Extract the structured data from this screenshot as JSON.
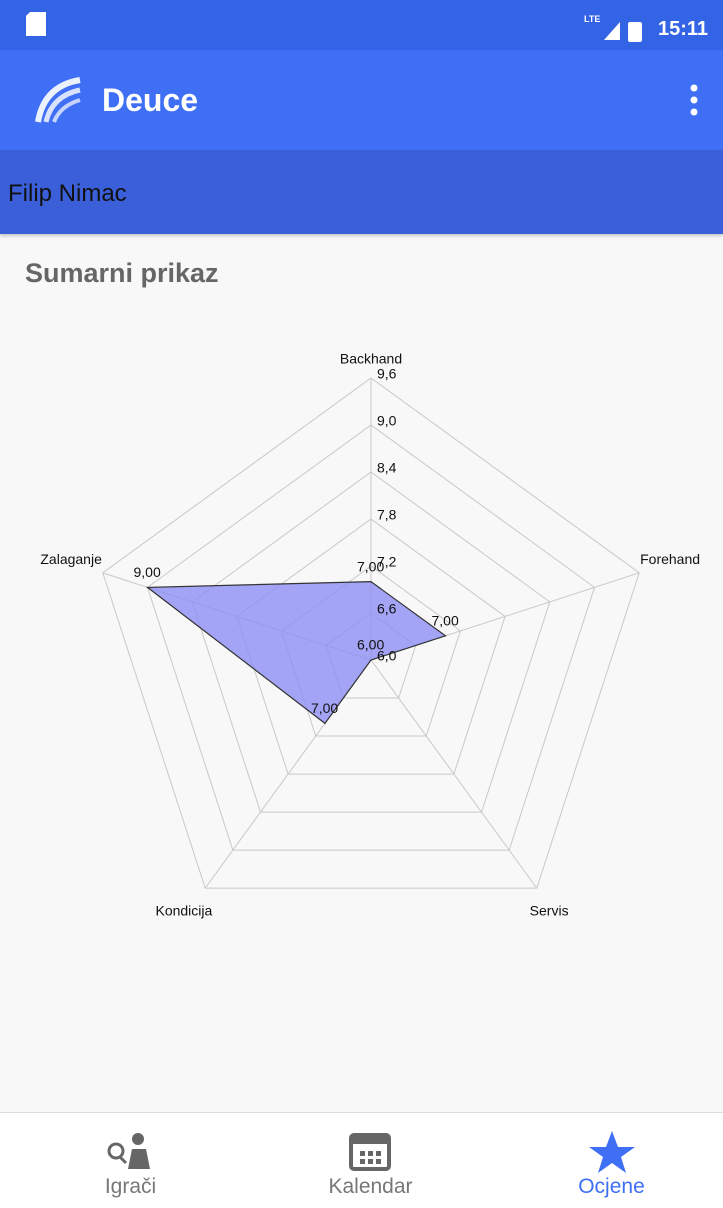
{
  "status": {
    "network": "LTE",
    "time": "15:11"
  },
  "app_bar": {
    "title": "Deuce"
  },
  "player": {
    "name": "Filip Nimac"
  },
  "section": {
    "title": "Sumarni prikaz"
  },
  "chart_data": {
    "type": "radar",
    "categories": [
      "Backhand",
      "Forehand",
      "Servis",
      "Kondicija",
      "Zalaganje"
    ],
    "series": [
      {
        "color": "#8f8ff5",
        "values": [
          7.0,
          7.0,
          6.0,
          7.0,
          9.0
        ],
        "value_labels": [
          "7,00",
          "7,00",
          "6,00",
          "7,00",
          "9,00"
        ]
      }
    ],
    "ylim": [
      6.0,
      9.6
    ],
    "yticks": [
      {
        "value": 6.0,
        "label": "6,0"
      },
      {
        "value": 6.6,
        "label": "6,6"
      },
      {
        "value": 7.2,
        "label": "7,2"
      },
      {
        "value": 7.8,
        "label": "7,8"
      },
      {
        "value": 8.4,
        "label": "8,4"
      },
      {
        "value": 9.0,
        "label": "9,0"
      },
      {
        "value": 9.6,
        "label": "9,6"
      }
    ],
    "grid": true
  },
  "nav": {
    "items": [
      "Igrači",
      "Kalendar",
      "Ocjene"
    ]
  }
}
